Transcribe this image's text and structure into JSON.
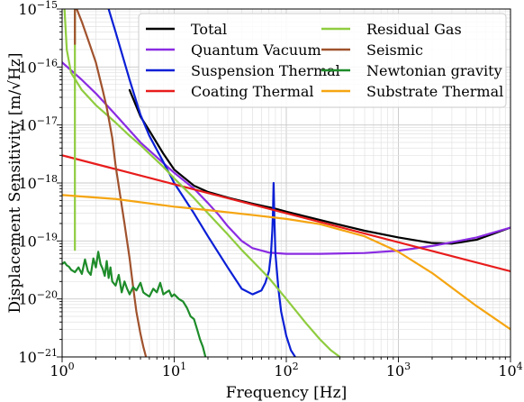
{
  "chart_data": {
    "type": "line",
    "title": "",
    "xlabel": "Frequency [Hz]",
    "ylabel": "Displacement Sensitivity [m/√Hz]",
    "xscale": "log",
    "yscale": "log",
    "xlim": [
      1,
      10000
    ],
    "ylim": [
      1e-21,
      1e-15
    ],
    "x_ticks": [
      {
        "value": 1,
        "base": "10",
        "exp": "0"
      },
      {
        "value": 10,
        "base": "10",
        "exp": "1"
      },
      {
        "value": 100,
        "base": "10",
        "exp": "2"
      },
      {
        "value": 1000,
        "base": "10",
        "exp": "3"
      },
      {
        "value": 10000,
        "base": "10",
        "exp": "4"
      }
    ],
    "y_ticks": [
      {
        "value": 1e-21,
        "base": "10",
        "exp": "−21"
      },
      {
        "value": 1e-20,
        "base": "10",
        "exp": "−20"
      },
      {
        "value": 1e-19,
        "base": "10",
        "exp": "−19"
      },
      {
        "value": 1e-18,
        "base": "10",
        "exp": "−18"
      },
      {
        "value": 1e-17,
        "base": "10",
        "exp": "−17"
      },
      {
        "value": 1e-16,
        "base": "10",
        "exp": "−16"
      },
      {
        "value": 1e-15,
        "base": "10",
        "exp": "−15"
      }
    ],
    "grid": true,
    "legend_position": "top-right",
    "series": [
      {
        "name": "Total",
        "color": "#000000",
        "x": [
          4,
          5,
          6,
          8,
          10,
          15,
          20,
          30,
          50,
          80,
          100,
          200,
          500,
          1000,
          2000,
          3000,
          5000,
          10000
        ],
        "y": [
          4e-17,
          1.4e-17,
          8e-18,
          3.2e-18,
          1.7e-18,
          9e-19,
          7e-19,
          5.6e-19,
          4.4e-19,
          3.6e-19,
          3.2e-19,
          2.3e-19,
          1.5e-19,
          1.15e-19,
          9.2e-20,
          9e-20,
          1.05e-19,
          1.7e-19
        ]
      },
      {
        "name": "Quantum Vacuum",
        "color": "#8a2be2",
        "x": [
          1,
          1.5,
          2,
          3,
          5,
          8,
          10,
          15,
          20,
          25,
          30,
          40,
          50,
          70,
          100,
          200,
          500,
          1000,
          2000,
          3000,
          5000,
          10000
        ],
        "y": [
          1.2e-16,
          6e-17,
          3.5e-17,
          1.5e-17,
          5e-18,
          2.2e-18,
          1.5e-18,
          8e-19,
          4.5e-19,
          2.8e-19,
          1.8e-19,
          1e-19,
          7.5e-20,
          6.3e-20,
          6e-20,
          6e-20,
          6.2e-20,
          6.8e-20,
          8.2e-20,
          9.5e-20,
          1.15e-19,
          1.7e-19
        ]
      },
      {
        "name": "Suspension Thermal",
        "color": "#0a1fd6",
        "x": [
          2.6,
          3,
          4,
          5,
          6,
          8,
          10,
          15,
          20,
          30,
          40,
          50,
          60,
          65,
          70,
          73,
          75,
          76,
          77,
          78,
          80,
          85,
          90,
          100,
          110,
          120
        ],
        "y": [
          1e-15,
          4e-16,
          6e-17,
          1.5e-17,
          6.5e-18,
          2.3e-18,
          1e-18,
          3e-19,
          1.2e-19,
          3.5e-20,
          1.5e-20,
          1.2e-20,
          1.4e-20,
          1.9e-20,
          3e-20,
          6e-20,
          1.5e-19,
          3e-19,
          1e-18,
          3e-19,
          6e-20,
          1.5e-20,
          6e-21,
          2.3e-21,
          1.3e-21,
          1e-21
        ]
      },
      {
        "name": "Coating Thermal",
        "color": "#e81c1c",
        "x": [
          1,
          10000
        ],
        "y": [
          3e-18,
          3e-20
        ]
      },
      {
        "name": "Residual Gas",
        "color": "#8fcc3f",
        "x": [
          1.05,
          1.1,
          1.2,
          1.5,
          2,
          3,
          4,
          5,
          6,
          8,
          10,
          15,
          20,
          30,
          40,
          50,
          70,
          100,
          150,
          200,
          250,
          300
        ],
        "y": [
          1e-15,
          2e-16,
          8e-17,
          4e-17,
          2.2e-17,
          1.1e-17,
          6.5e-18,
          4.5e-18,
          3.2e-18,
          1.9e-18,
          1.2e-18,
          5.5e-19,
          3e-19,
          1.3e-19,
          7e-20,
          4.5e-20,
          2.3e-20,
          1e-20,
          3.8e-21,
          2e-21,
          1.3e-21,
          1e-21
        ]
      },
      {
        "name": "Residual Gas (spike)",
        "color": "#8fcc3f",
        "x": [
          1.3,
          1.3
        ],
        "y": [
          7e-20,
          1e-15
        ]
      },
      {
        "name": "Seismic",
        "color": "#a0522d",
        "x": [
          1.3,
          1.3,
          1.3,
          1.35,
          1.5,
          1.7,
          2,
          2.3,
          2.5,
          2.8,
          3,
          3.3,
          3.6,
          4,
          4.3,
          4.6,
          5,
          5.3,
          5.6
        ],
        "y": [
          2.5e-16,
          4e-16,
          1e-15,
          1e-15,
          6e-16,
          3e-16,
          1.2e-16,
          4e-17,
          2e-17,
          6e-18,
          2e-18,
          6e-19,
          2e-19,
          5e-20,
          1.6e-20,
          6e-21,
          2.5e-21,
          1.5e-21,
          1e-21
        ]
      },
      {
        "name": "Newtonian gravity",
        "color": "#1e8c2a",
        "x": [
          1,
          1.05,
          1.1,
          1.15,
          1.2,
          1.3,
          1.4,
          1.5,
          1.6,
          1.7,
          1.8,
          1.9,
          2,
          2.1,
          2.2,
          2.3,
          2.4,
          2.5,
          2.6,
          2.7,
          2.8,
          3,
          3.2,
          3.4,
          3.6,
          3.8,
          4,
          4.3,
          4.6,
          5,
          5.3,
          5.6,
          6,
          6.5,
          7,
          7.5,
          8,
          8.5,
          9,
          9.5,
          10,
          11,
          12,
          13,
          14,
          15,
          16,
          17,
          18,
          19
        ],
        "y": [
          4e-20,
          4.3e-20,
          3.8e-20,
          3.6e-20,
          3.2e-20,
          2.9e-20,
          3.5e-20,
          2.7e-20,
          4.8e-20,
          3e-20,
          2.6e-20,
          5e-20,
          3.5e-20,
          6.5e-20,
          4e-20,
          3.3e-20,
          2.5e-20,
          4.5e-20,
          2.3e-20,
          3.5e-20,
          2e-20,
          1.7e-20,
          2.6e-20,
          1.3e-20,
          2e-20,
          1.5e-20,
          1.2e-20,
          1.6e-20,
          1.4e-20,
          1.9e-20,
          1.3e-20,
          1.2e-20,
          1.1e-20,
          1.5e-20,
          1.3e-20,
          1.9e-20,
          1.2e-20,
          1.3e-20,
          1.4e-20,
          1.1e-20,
          1.2e-20,
          1e-20,
          9e-21,
          7e-21,
          5e-21,
          4.5e-21,
          3e-21,
          2e-21,
          1.5e-21,
          1e-21
        ]
      },
      {
        "name": "Substrate Thermal",
        "color": "#f5a511",
        "x": [
          1,
          3,
          10,
          20,
          50,
          100,
          200,
          500,
          1000,
          2000,
          5000,
          10000
        ],
        "y": [
          6.2e-19,
          5.3e-19,
          3.9e-19,
          3.4e-19,
          2.8e-19,
          2.4e-19,
          1.95e-19,
          1.2e-19,
          6.5e-20,
          2.8e-20,
          7.5e-21,
          3e-21
        ]
      }
    ],
    "legend": [
      {
        "label": "Total",
        "color": "#000000"
      },
      {
        "label": "Quantum Vacuum",
        "color": "#8a2be2"
      },
      {
        "label": "Suspension Thermal",
        "color": "#0a1fd6"
      },
      {
        "label": "Coating Thermal",
        "color": "#e81c1c"
      },
      {
        "label": "Residual Gas",
        "color": "#8fcc3f"
      },
      {
        "label": "Seismic",
        "color": "#a0522d"
      },
      {
        "label": "Newtonian gravity",
        "color": "#1e8c2a"
      },
      {
        "label": "Substrate Thermal",
        "color": "#f5a511"
      }
    ]
  }
}
